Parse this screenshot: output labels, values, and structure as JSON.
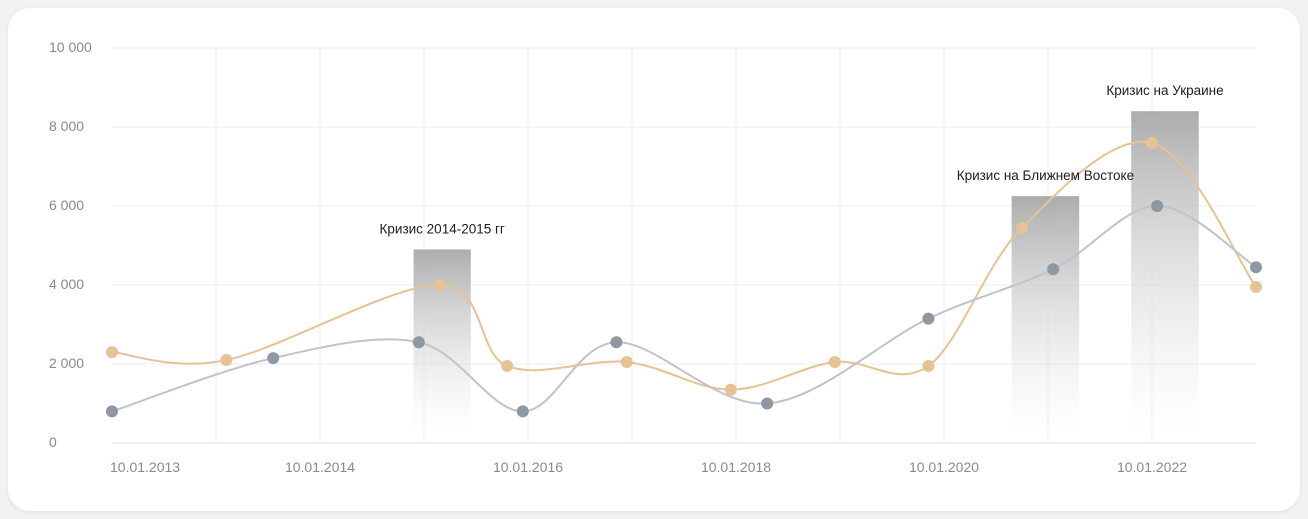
{
  "chart_data": {
    "type": "line",
    "ylim": [
      0,
      10000
    ],
    "y_ticks": [
      {
        "value": 0,
        "label": "0"
      },
      {
        "value": 2000,
        "label": "2 000"
      },
      {
        "value": 4000,
        "label": "4 000"
      },
      {
        "value": 6000,
        "label": "6 000"
      },
      {
        "value": 8000,
        "label": "8 000"
      },
      {
        "value": 10000,
        "label": "10 000"
      }
    ],
    "x_ticks": [
      "10.01.2013",
      "10.01.2014",
      "10.01.2016",
      "10.01.2018",
      "10.01.2020",
      "10.01.2022"
    ],
    "grid": true,
    "series": [
      {
        "color": "#e6c296",
        "points": [
          {
            "x": 0.0,
            "y": 2300
          },
          {
            "x": 1.1,
            "y": 2100
          },
          {
            "x": 3.15,
            "y": 4000
          },
          {
            "x": 3.8,
            "y": 1950
          },
          {
            "x": 4.95,
            "y": 2050
          },
          {
            "x": 5.95,
            "y": 1350
          },
          {
            "x": 6.95,
            "y": 2050
          },
          {
            "x": 7.85,
            "y": 1950
          },
          {
            "x": 8.75,
            "y": 5450
          },
          {
            "x": 10.0,
            "y": 7600
          },
          {
            "x": 11.0,
            "y": 3950
          }
        ]
      },
      {
        "color": "#c0c3c7",
        "points": [
          {
            "x": 0.0,
            "y": 800
          },
          {
            "x": 1.55,
            "y": 2150
          },
          {
            "x": 2.95,
            "y": 2550
          },
          {
            "x": 3.95,
            "y": 800
          },
          {
            "x": 4.85,
            "y": 2550
          },
          {
            "x": 6.3,
            "y": 1000
          },
          {
            "x": 7.85,
            "y": 3150
          },
          {
            "x": 9.05,
            "y": 4400
          },
          {
            "x": 10.05,
            "y": 6000
          },
          {
            "x": 11.0,
            "y": 4450
          }
        ],
        "marker_color": "#8e98a2"
      }
    ],
    "events": [
      {
        "label": "Кризис 2014-2015 гг",
        "x_start": 2.9,
        "x_end": 3.45,
        "value": 4900
      },
      {
        "label": "Кризис на Ближнем Востоке",
        "x_start": 8.65,
        "x_end": 9.3,
        "value": 6250
      },
      {
        "label": "Кризис на Украине",
        "x_start": 9.8,
        "x_end": 10.45,
        "value": 8400
      }
    ]
  }
}
